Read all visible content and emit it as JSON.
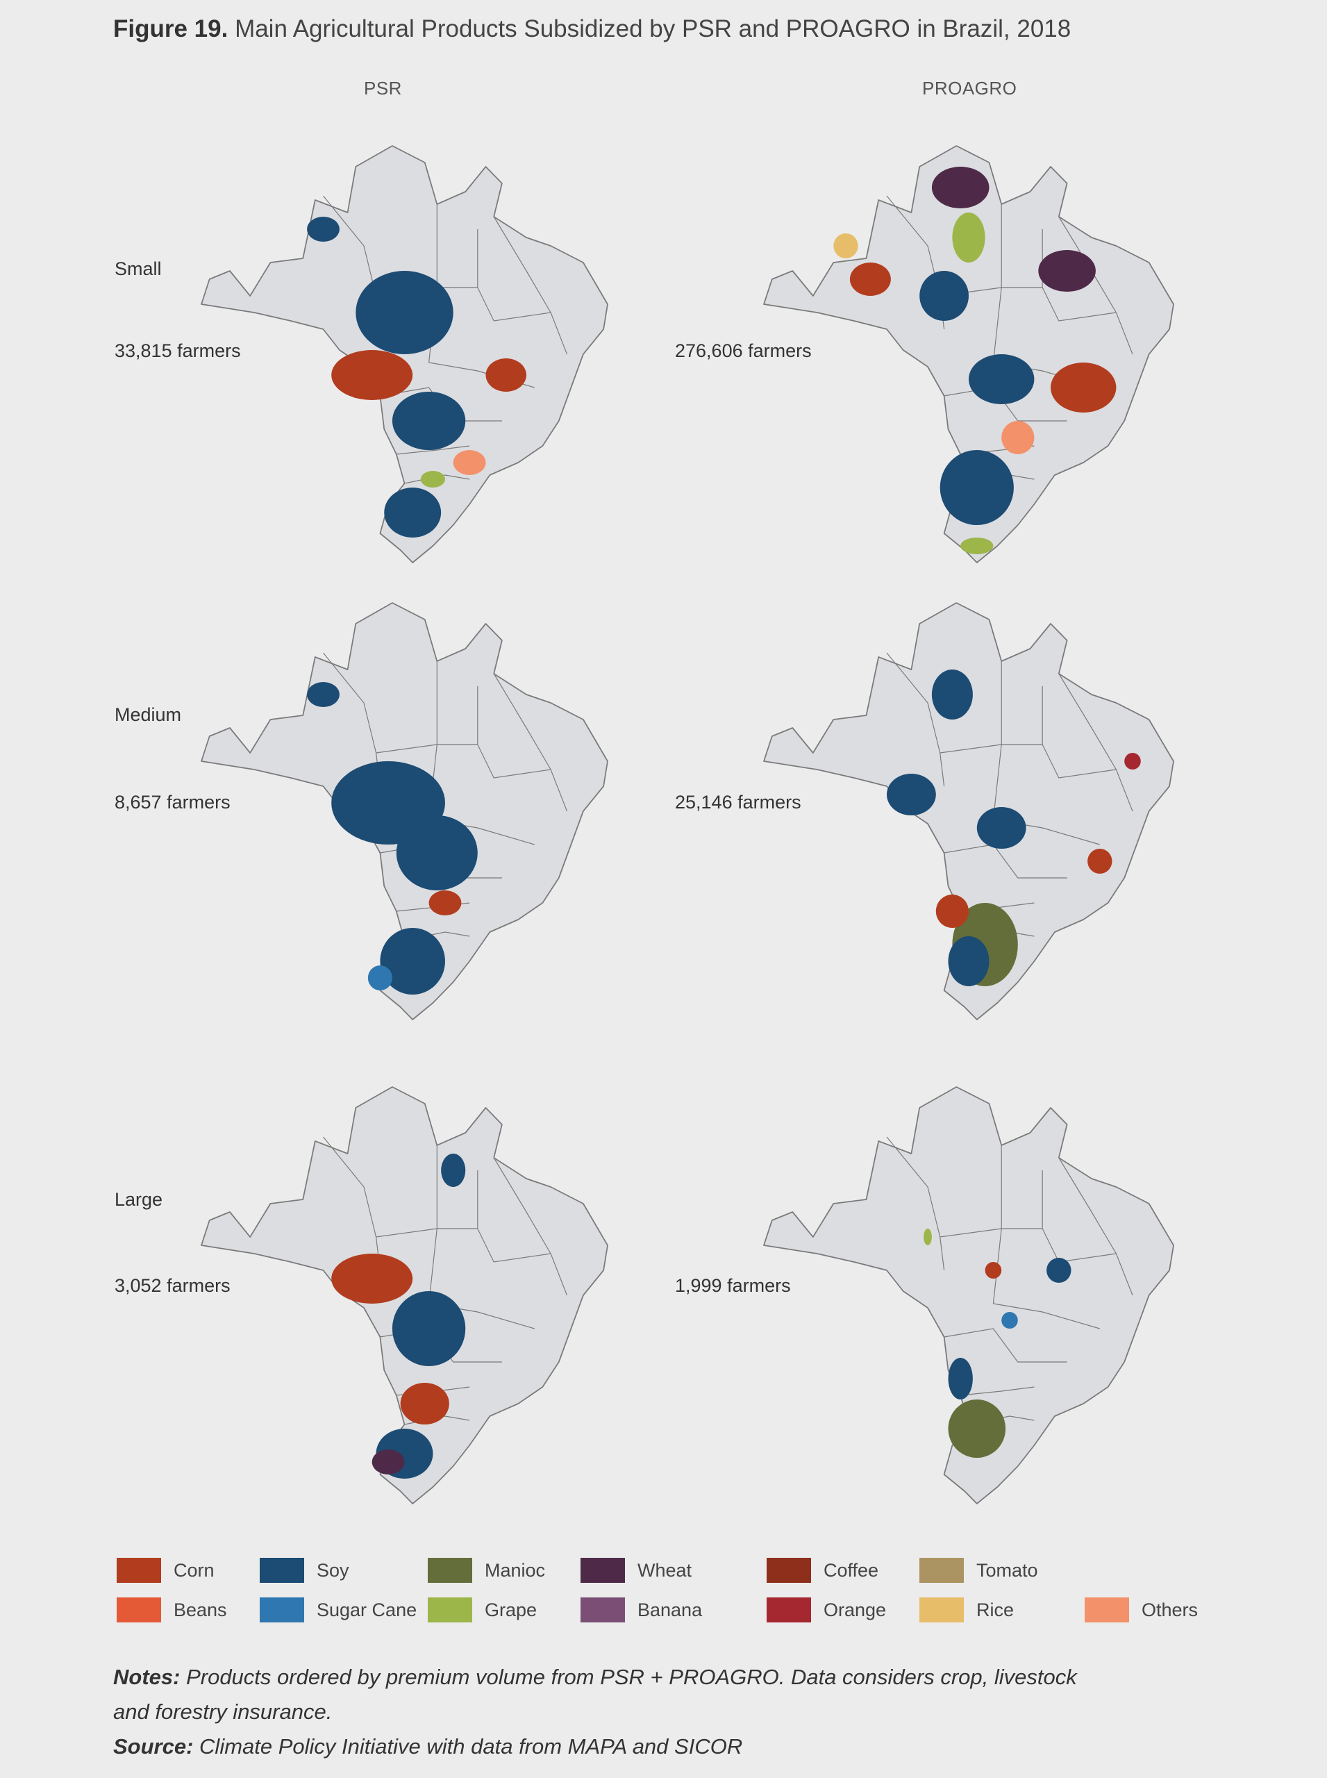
{
  "figure": {
    "number": "Figure 19.",
    "title": "Main Agricultural Products Subsidized by PSR and PROAGRO in Brazil, 2018"
  },
  "columns": [
    "PSR",
    "PROAGRO"
  ],
  "rows": [
    {
      "label": "Small",
      "psr_farmers": "33,815 farmers",
      "proagro_farmers": "276,606 farmers"
    },
    {
      "label": "Medium",
      "psr_farmers": "8,657 farmers",
      "proagro_farmers": "25,146 farmers"
    },
    {
      "label": "Large",
      "psr_farmers": "3,052 farmers",
      "proagro_farmers": "1,999 farmers"
    }
  ],
  "legend": [
    {
      "name": "Corn",
      "color": "#b23c1e"
    },
    {
      "name": "Soy",
      "color": "#1c4b73"
    },
    {
      "name": "Manioc",
      "color": "#636e3a"
    },
    {
      "name": "Wheat",
      "color": "#4e2a48"
    },
    {
      "name": "Coffee",
      "color": "#8e2f1c"
    },
    {
      "name": "Tomato",
      "color": "#ab9462"
    },
    {
      "name": "Beans",
      "color": "#e45a37"
    },
    {
      "name": "Sugar Cane",
      "color": "#2f77b0"
    },
    {
      "name": "Grape",
      "color": "#9cb64a"
    },
    {
      "name": "Banana",
      "color": "#7b4f75"
    },
    {
      "name": "Orange",
      "color": "#a52730"
    },
    {
      "name": "Rice",
      "color": "#e8bd6a"
    },
    {
      "name": "Others",
      "color": "#f3916a"
    }
  ],
  "notes": {
    "notes_label": "Notes:",
    "notes_line1": "Products ordered by premium volume from PSR + PROAGRO. Data considers crop, livestock",
    "notes_line2": "and forestry insurance.",
    "source_label": "Source:",
    "source_text": "Climate Policy Initiative with data from MAPA and SICOR"
  },
  "map_colors": {
    "land": "#dcdde1",
    "border": "#7a7a7a"
  }
}
